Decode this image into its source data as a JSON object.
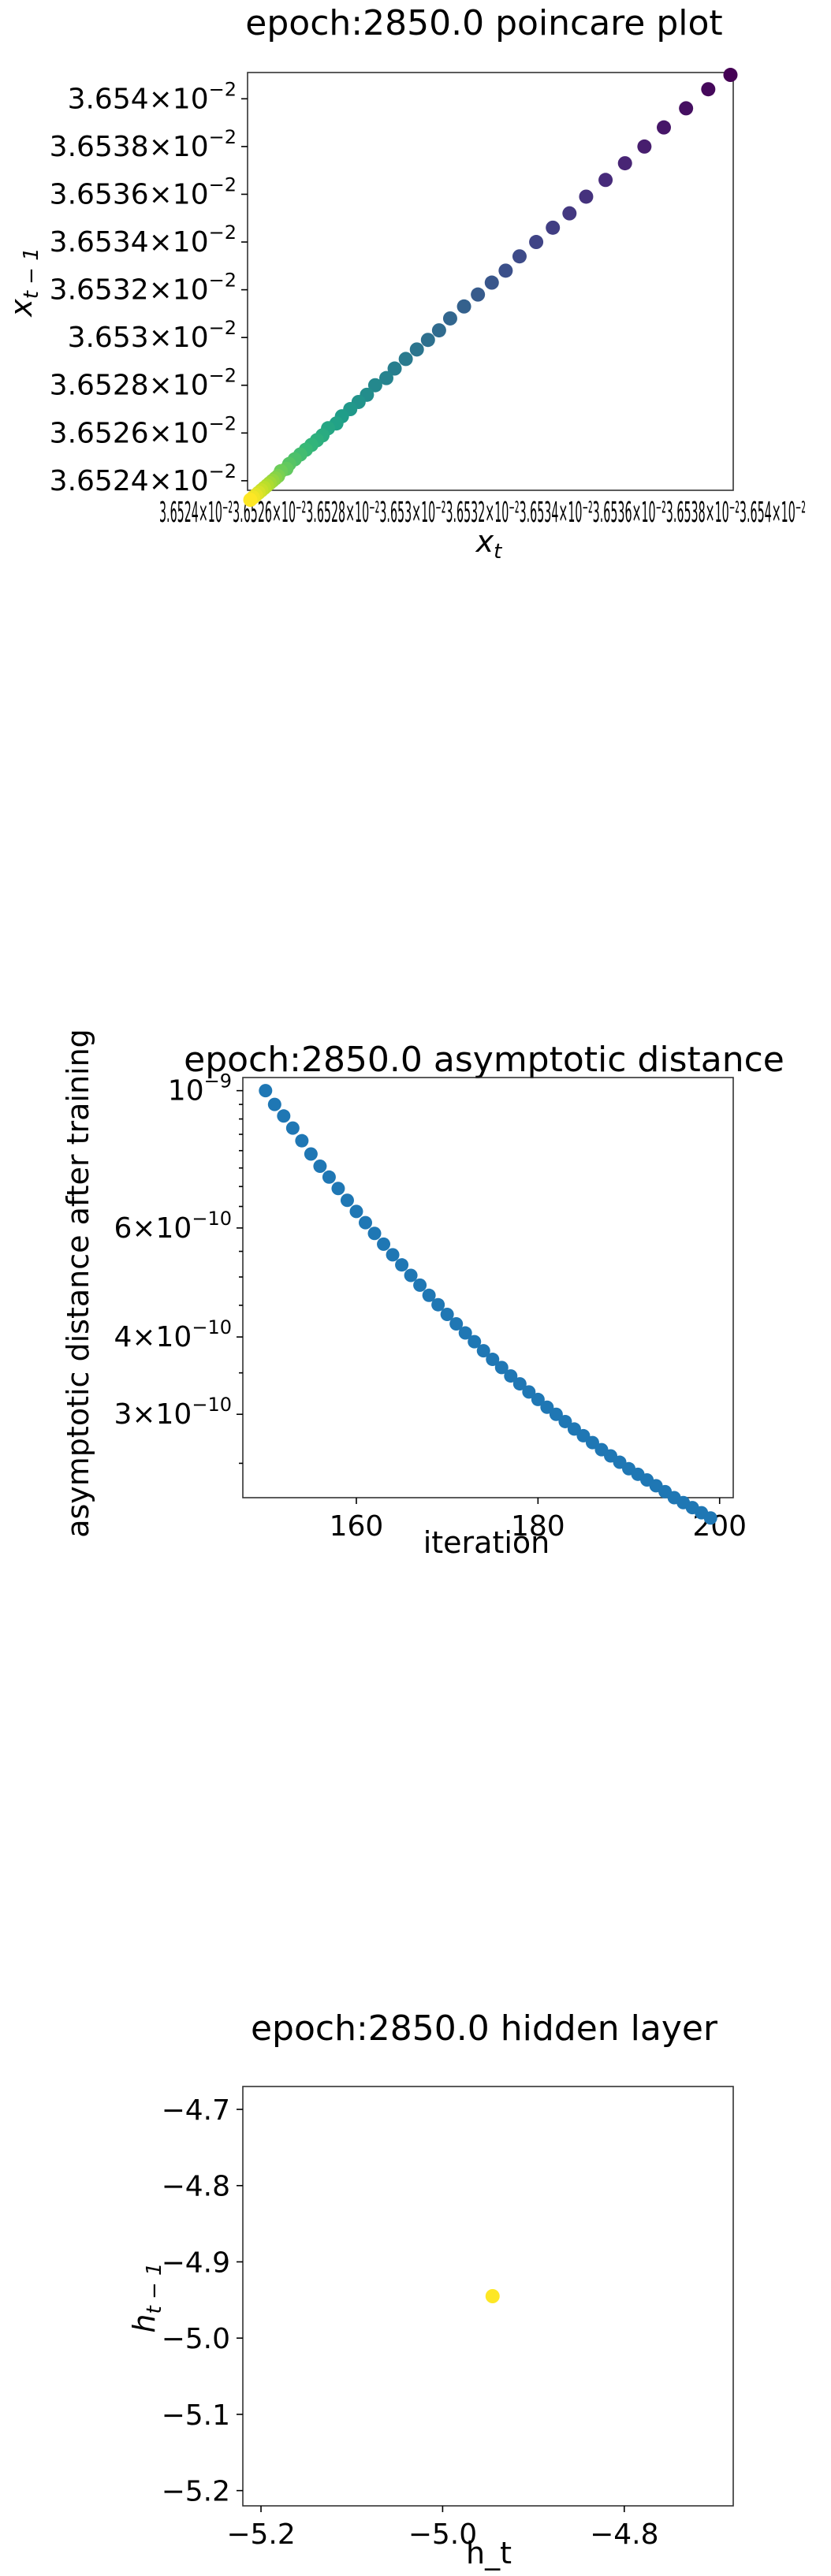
{
  "chart_data": [
    {
      "type": "scatter",
      "title": "epoch:2850.0 poincare plot",
      "xlabel": "x_t",
      "ylabel": "x_{t-1}",
      "xlim": [
        0.036523,
        0.0365405
      ],
      "ylim": [
        0.0365236,
        0.0365411
      ],
      "yticks": [
        {
          "value": 0.036524,
          "base": "3.6524",
          "exp": "−2"
        },
        {
          "value": 0.036526,
          "base": "3.6526",
          "exp": "−2"
        },
        {
          "value": 0.036528,
          "base": "3.6528",
          "exp": "−2"
        },
        {
          "value": 0.03653,
          "base": "3.653",
          "exp": "−2"
        },
        {
          "value": 0.036532,
          "base": "3.6532",
          "exp": "−2"
        },
        {
          "value": 0.036534,
          "base": "3.6534",
          "exp": "−2"
        },
        {
          "value": 0.036536,
          "base": "3.6536",
          "exp": "−2"
        },
        {
          "value": 0.036538,
          "base": "3.6538",
          "exp": "−2"
        },
        {
          "value": 0.03654,
          "base": "3.654",
          "exp": "−2"
        }
      ],
      "xtick_text": "3.6524×10⁻²3.6526×10⁻²3.6528×10⁻²3.653×10⁻²3.6532×10⁻²3.6534×10⁻²3.6536×10⁻²3.6538×10⁻²3.654×10⁻²",
      "colormap": "viridis",
      "x": [
        0.0365404,
        0.0365396,
        0.0365388,
        0.036538,
        0.0365373,
        0.0365366,
        0.0365359,
        0.0365352,
        0.0365346,
        0.036534,
        0.0365334,
        0.0365328,
        0.0365323,
        0.0365318,
        0.0365313,
        0.0365308,
        0.0365303,
        0.0365299,
        0.0365295,
        0.0365291,
        0.0365287,
        0.0365283,
        0.036528,
        0.0365276,
        0.0365273,
        0.036527,
        0.0365267,
        0.0365264,
        0.0365262,
        0.0365259,
        0.0365257,
        0.0365255,
        0.0365253,
        0.0365251,
        0.0365249,
        0.0365247,
        0.0365245,
        0.0365244,
        0.0365242,
        0.0365241,
        0.036524,
        0.0365239,
        0.0365238,
        0.0365237,
        0.0365236,
        0.0365235,
        0.0365234,
        0.0365233,
        0.0365232,
        0.0365231
      ],
      "y": [
        0.036541,
        0.0365404,
        0.0365396,
        0.0365388,
        0.036538,
        0.0365373,
        0.0365366,
        0.0365359,
        0.0365352,
        0.0365346,
        0.036534,
        0.0365334,
        0.0365328,
        0.0365323,
        0.0365318,
        0.0365313,
        0.0365308,
        0.0365303,
        0.0365299,
        0.0365295,
        0.0365291,
        0.0365287,
        0.0365283,
        0.036528,
        0.0365276,
        0.0365273,
        0.036527,
        0.0365267,
        0.0365264,
        0.0365262,
        0.0365259,
        0.0365257,
        0.0365255,
        0.0365253,
        0.0365251,
        0.0365249,
        0.0365247,
        0.0365245,
        0.0365244,
        0.0365242,
        0.0365241,
        0.036524,
        0.0365239,
        0.0365238,
        0.0365237,
        0.0365236,
        0.0365235,
        0.0365234,
        0.0365233,
        0.0365232
      ]
    },
    {
      "type": "scatter",
      "title": "epoch:2850.0 asymptotic distance",
      "xlabel": "iteration",
      "ylabel": "asymptotic distance after training",
      "yscale": "log",
      "xlim": [
        147.5,
        201.5
      ],
      "ylim": [
        2.2e-10,
        1.05e-09
      ],
      "xticks": [
        160,
        180,
        200
      ],
      "yticks": [
        {
          "value": 1e-09,
          "base": "10",
          "exp": "−9"
        },
        {
          "value": 6e-10,
          "base": "6×10",
          "exp": "−10"
        },
        {
          "value": 4e-10,
          "base": "4×10",
          "exp": "−10"
        },
        {
          "value": 3e-10,
          "base": "3×10",
          "exp": "−10"
        }
      ],
      "color": "#1f77b4",
      "x": [
        150,
        151,
        152,
        153,
        154,
        155,
        156,
        157,
        158,
        159,
        160,
        161,
        162,
        163,
        164,
        165,
        166,
        167,
        168,
        169,
        170,
        171,
        172,
        173,
        174,
        175,
        176,
        177,
        178,
        179,
        180,
        181,
        182,
        183,
        184,
        185,
        186,
        187,
        188,
        189,
        190,
        191,
        192,
        193,
        194,
        195,
        196,
        197,
        198,
        199
      ],
      "y": [
        1e-09,
        9.5e-10,
        9.1e-10,
        8.7e-10,
        8.3e-10,
        7.9e-10,
        7.55e-10,
        7.25e-10,
        6.95e-10,
        6.65e-10,
        6.38e-10,
        6.12e-10,
        5.88e-10,
        5.65e-10,
        5.43e-10,
        5.23e-10,
        5.03e-10,
        4.85e-10,
        4.67e-10,
        4.51e-10,
        4.35e-10,
        4.2e-10,
        4.06e-10,
        3.93e-10,
        3.8e-10,
        3.68e-10,
        3.57e-10,
        3.46e-10,
        3.36e-10,
        3.26e-10,
        3.17e-10,
        3.08e-10,
        3e-10,
        2.92e-10,
        2.84e-10,
        2.77e-10,
        2.7e-10,
        2.63e-10,
        2.57e-10,
        2.51e-10,
        2.45e-10,
        2.4e-10,
        2.35e-10,
        2.3e-10,
        2.25e-10,
        2.2e-10,
        2.16e-10,
        2.12e-10,
        2.08e-10,
        2.04e-10
      ]
    },
    {
      "type": "scatter",
      "title": "epoch:2850.0 hidden layer",
      "xlabel": "h_t",
      "ylabel": "h_{t-1}",
      "xlim": [
        -5.22,
        -4.68
      ],
      "ylim": [
        -5.22,
        -4.67
      ],
      "xticks": [
        -5.2,
        -5.0,
        -4.8
      ],
      "xtick_labels": [
        "−5.2",
        "−5.0",
        "−4.8"
      ],
      "yticks": [
        -4.7,
        -4.8,
        -4.9,
        -5.0,
        -5.1,
        -5.2
      ],
      "ytick_labels": [
        "−4.7",
        "−4.8",
        "−4.9",
        "−5.0",
        "−5.1",
        "−5.2"
      ],
      "color": "#fde725",
      "x": [
        -4.945
      ],
      "y": [
        -4.945
      ]
    }
  ]
}
